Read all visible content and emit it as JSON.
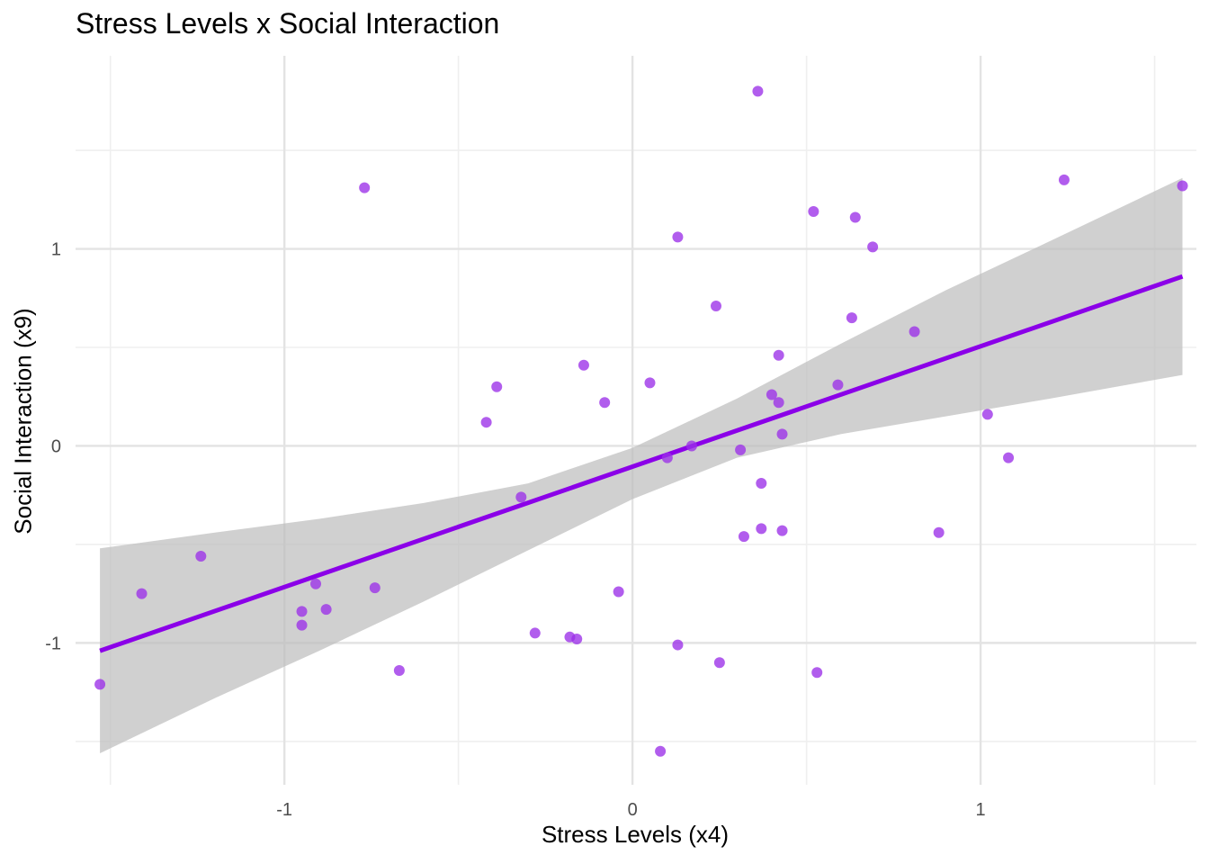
{
  "chart_data": {
    "type": "scatter",
    "title": "Stress Levels x Social Interaction",
    "xlabel": "Stress Levels (x4)",
    "ylabel": "Social Interaction (x9)",
    "xlim": [
      -1.6,
      1.62
    ],
    "ylim": [
      -1.72,
      1.98
    ],
    "x_ticks": [
      {
        "value": -1,
        "label": "-1"
      },
      {
        "value": 0,
        "label": "0"
      },
      {
        "value": 1,
        "label": "1"
      }
    ],
    "y_ticks": [
      {
        "value": -1,
        "label": "-1"
      },
      {
        "value": 0,
        "label": "0"
      },
      {
        "value": 1,
        "label": "1"
      }
    ],
    "x_minor": [
      -1.5,
      -0.5,
      0.5,
      1.5
    ],
    "y_minor": [
      -1.5,
      -0.5,
      0.5,
      1.5
    ],
    "grid": true,
    "points": [
      {
        "x": 0.36,
        "y": 1.8
      },
      {
        "x": -0.77,
        "y": 1.31
      },
      {
        "x": 1.24,
        "y": 1.35
      },
      {
        "x": 1.58,
        "y": 1.32
      },
      {
        "x": 0.52,
        "y": 1.19
      },
      {
        "x": 0.64,
        "y": 1.16
      },
      {
        "x": 0.13,
        "y": 1.06
      },
      {
        "x": 0.69,
        "y": 1.01
      },
      {
        "x": 0.24,
        "y": 0.71
      },
      {
        "x": 0.63,
        "y": 0.65
      },
      {
        "x": 0.81,
        "y": 0.58
      },
      {
        "x": 0.42,
        "y": 0.46
      },
      {
        "x": -0.14,
        "y": 0.41
      },
      {
        "x": 0.05,
        "y": 0.32
      },
      {
        "x": -0.39,
        "y": 0.3
      },
      {
        "x": 0.59,
        "y": 0.31
      },
      {
        "x": 0.4,
        "y": 0.26
      },
      {
        "x": -0.08,
        "y": 0.22
      },
      {
        "x": 0.42,
        "y": 0.22
      },
      {
        "x": -0.42,
        "y": 0.12
      },
      {
        "x": 1.02,
        "y": 0.16
      },
      {
        "x": 0.43,
        "y": 0.06
      },
      {
        "x": 0.17,
        "y": 0.0
      },
      {
        "x": 0.31,
        "y": -0.02
      },
      {
        "x": 0.1,
        "y": -0.06
      },
      {
        "x": 1.08,
        "y": -0.06
      },
      {
        "x": 0.37,
        "y": -0.19
      },
      {
        "x": -0.32,
        "y": -0.26
      },
      {
        "x": 0.37,
        "y": -0.42
      },
      {
        "x": 0.43,
        "y": -0.43
      },
      {
        "x": 0.32,
        "y": -0.46
      },
      {
        "x": 0.88,
        "y": -0.44
      },
      {
        "x": -1.24,
        "y": -0.56
      },
      {
        "x": -1.41,
        "y": -0.75
      },
      {
        "x": -0.91,
        "y": -0.7
      },
      {
        "x": -0.74,
        "y": -0.72
      },
      {
        "x": -0.04,
        "y": -0.74
      },
      {
        "x": -0.95,
        "y": -0.84
      },
      {
        "x": -0.88,
        "y": -0.83
      },
      {
        "x": -0.95,
        "y": -0.91
      },
      {
        "x": -0.28,
        "y": -0.95
      },
      {
        "x": -0.18,
        "y": -0.97
      },
      {
        "x": -0.16,
        "y": -0.98
      },
      {
        "x": 0.13,
        "y": -1.01
      },
      {
        "x": 0.25,
        "y": -1.1
      },
      {
        "x": -0.67,
        "y": -1.14
      },
      {
        "x": 0.53,
        "y": -1.15
      },
      {
        "x": -1.53,
        "y": -1.21
      },
      {
        "x": 0.08,
        "y": -1.55
      }
    ],
    "trend_line": {
      "x": [
        -1.53,
        1.58
      ],
      "y": [
        -1.04,
        0.86
      ]
    },
    "confidence_band": {
      "x": [
        -1.53,
        -1.2,
        -0.9,
        -0.6,
        -0.3,
        0.0,
        0.3,
        0.6,
        0.9,
        1.2,
        1.58
      ],
      "lower": [
        -1.56,
        -1.28,
        -1.04,
        -0.79,
        -0.53,
        -0.27,
        -0.06,
        0.06,
        0.15,
        0.24,
        0.36
      ],
      "upper": [
        -0.52,
        -0.44,
        -0.37,
        -0.29,
        -0.19,
        -0.01,
        0.24,
        0.52,
        0.79,
        1.04,
        1.36
      ]
    },
    "colors": {
      "points": "#9b30e8",
      "line": "#8b00e8",
      "band": "#bebebe",
      "grid_major": "#e3e3e3",
      "grid_minor": "#efefef",
      "tick_label": "#4d4d4d"
    }
  }
}
